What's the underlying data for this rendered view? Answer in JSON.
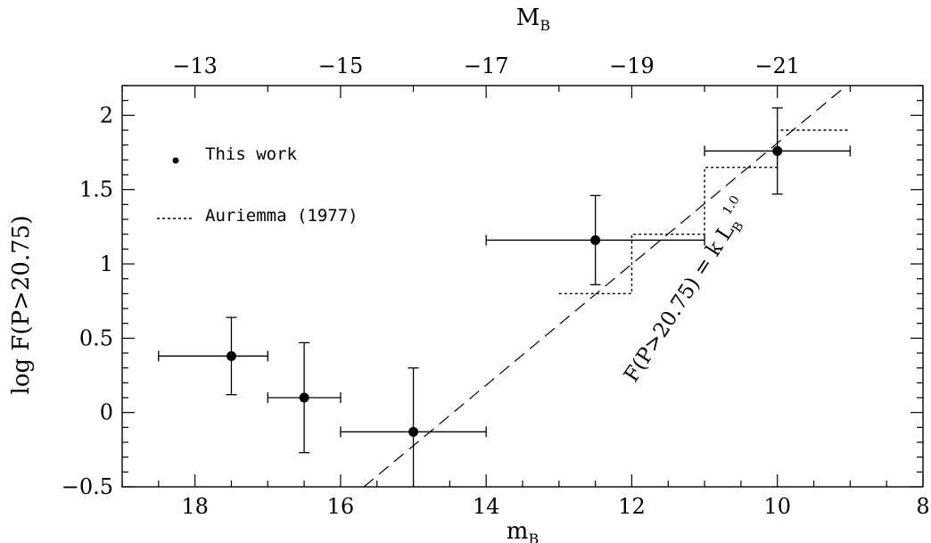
{
  "chart_data": {
    "type": "scatter",
    "xlabel_base": "m",
    "xlabel_sub": "B",
    "top_axis_label_base": "M",
    "top_axis_label_sub": "B",
    "ylabel": "log F(P>20.75)",
    "xlim": [
      19,
      8
    ],
    "ylim": [
      -0.5,
      2.2
    ],
    "x_ticks": [
      18,
      16,
      14,
      12,
      10,
      8
    ],
    "x_tick_labels": [
      "18",
      "16",
      "14",
      "12",
      "10",
      "8"
    ],
    "y_ticks": [
      -0.5,
      0,
      0.5,
      1,
      1.5,
      2
    ],
    "y_tick_labels": [
      "−0.5",
      "0",
      "0.5",
      "1",
      "1.5",
      "2"
    ],
    "top_ticks_M": [
      -13,
      -15,
      -17,
      -19,
      -21
    ],
    "top_tick_labels": [
      "−13",
      "−15",
      "−17",
      "−19",
      "−21"
    ],
    "top_axis_offset": -31,
    "grid": false,
    "legend_position": "top-left",
    "series": [
      {
        "name": "This work",
        "style": "points-with-errorbars",
        "color": "#000000",
        "points": [
          {
            "x": 17.5,
            "y": 0.38,
            "x_lo": 18.5,
            "x_hi": 17.0,
            "y_lo": 0.12,
            "y_hi": 0.64
          },
          {
            "x": 16.5,
            "y": 0.1,
            "x_lo": 17.0,
            "x_hi": 16.0,
            "y_lo": -0.27,
            "y_hi": 0.47
          },
          {
            "x": 15.0,
            "y": -0.13,
            "x_lo": 16.0,
            "x_hi": 14.0,
            "y_lo": -0.5,
            "y_hi": 0.3
          },
          {
            "x": 12.5,
            "y": 1.16,
            "x_lo": 14.0,
            "x_hi": 11.0,
            "y_lo": 0.86,
            "y_hi": 1.46
          },
          {
            "x": 10.0,
            "y": 1.76,
            "x_lo": 11.0,
            "x_hi": 9.0,
            "y_lo": 1.47,
            "y_hi": 2.05
          }
        ]
      },
      {
        "name": "Auriemma (1977)",
        "style": "dotted-step",
        "color": "#000000",
        "steps": [
          {
            "x_from": 13.0,
            "x_to": 12.0,
            "y": 0.8
          },
          {
            "x_from": 12.0,
            "x_to": 11.0,
            "y": 1.2
          },
          {
            "x_from": 11.0,
            "x_to": 10.0,
            "y": 1.65
          },
          {
            "x_from": 10.0,
            "x_to": 9.0,
            "y": 1.9
          }
        ]
      },
      {
        "name": "F(P>20.75) = k L_B^1.0",
        "style": "dashed-line",
        "color": "#000000",
        "points": [
          {
            "x": 15.68,
            "y": -0.5
          },
          {
            "x": 9.05,
            "y": 2.2
          }
        ]
      }
    ],
    "annotation": {
      "base": "F(P>20.75) = k L",
      "sub": "B",
      "sup": "1.0"
    }
  }
}
